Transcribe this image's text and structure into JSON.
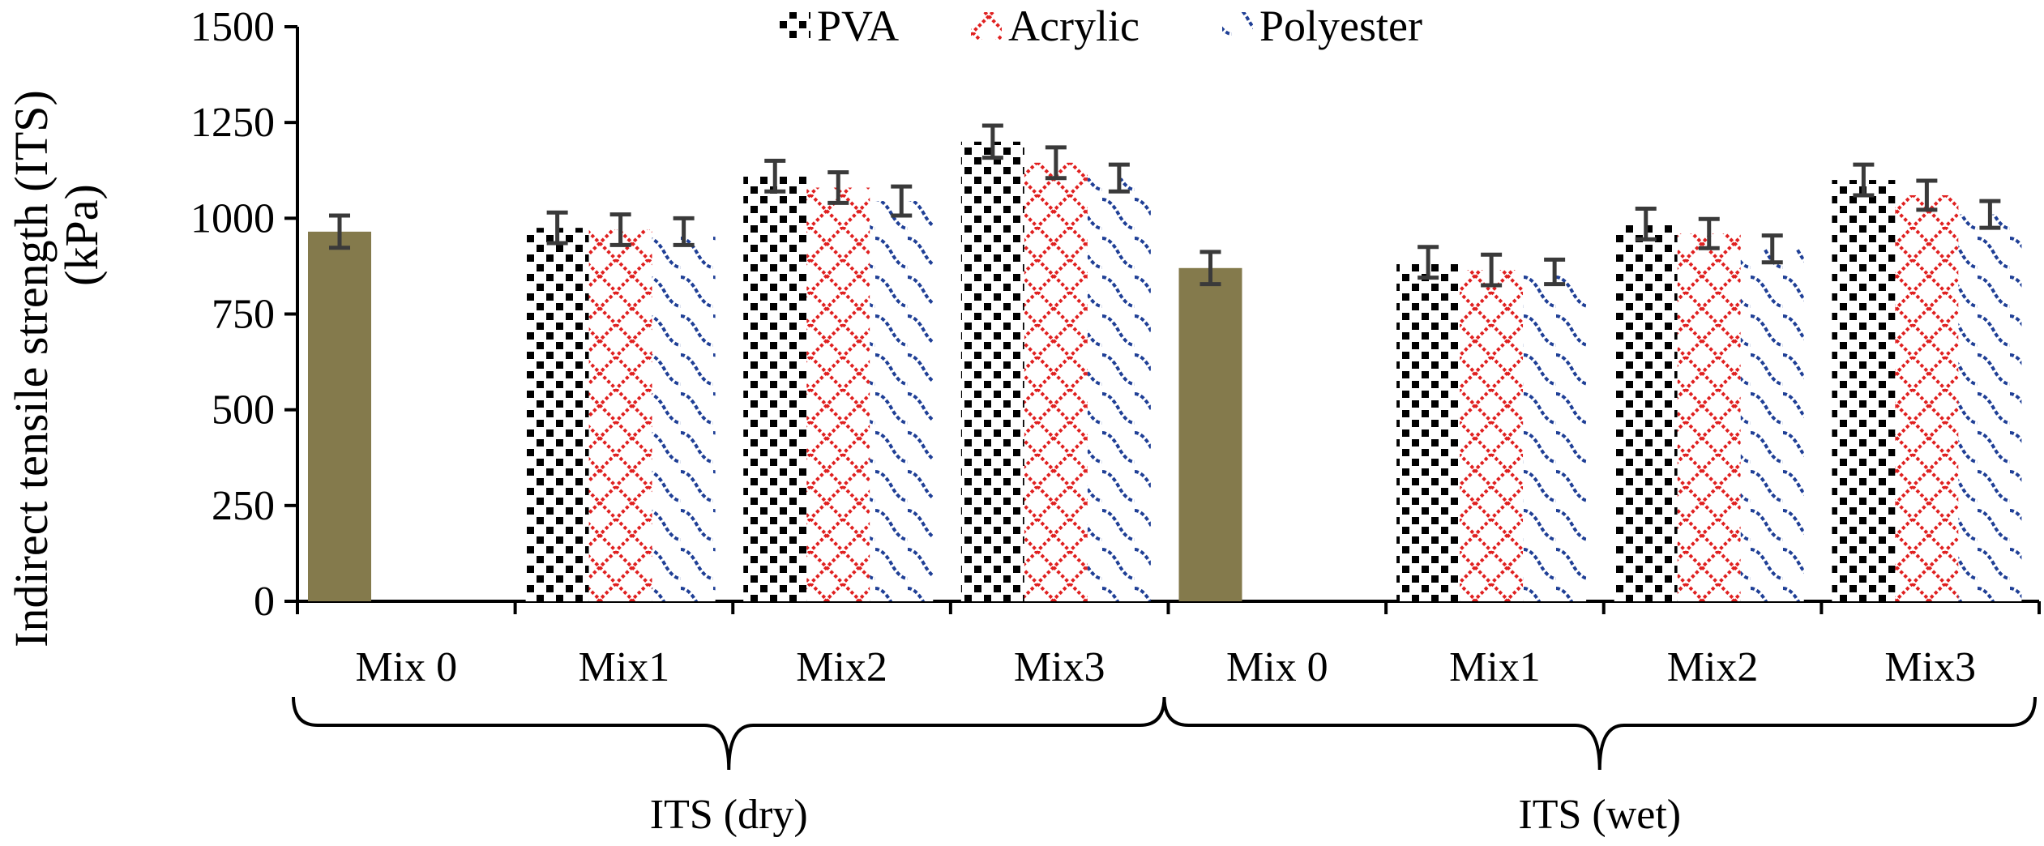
{
  "chart_data": {
    "type": "bar",
    "ylabel_line1": "Indirect tensile strength (ITS)",
    "ylabel_line2": "(kPa)",
    "ylim": [
      0,
      1500
    ],
    "yticks": [
      "0",
      "250",
      "500",
      "750",
      "1000",
      "1250",
      "1500"
    ],
    "ytick_values": [
      0,
      250,
      500,
      750,
      1000,
      1250,
      1500
    ],
    "categories": [
      "Mix 0",
      "Mix1",
      "Mix2",
      "Mix3",
      "Mix 0",
      "Mix1",
      "Mix2",
      "Mix3"
    ],
    "groups": [
      {
        "label": "ITS (dry)",
        "categories": [
          0,
          1,
          2,
          3
        ]
      },
      {
        "label": "ITS (wet)",
        "categories": [
          4,
          5,
          6,
          7
        ]
      }
    ],
    "legend": [
      "PVA",
      "Acrylic",
      "Polyester"
    ],
    "control": {
      "name": "Mix 0",
      "color": "#847a4c",
      "values": [
        965,
        null,
        null,
        null,
        870,
        null,
        null,
        null
      ],
      "errors": [
        42,
        null,
        null,
        null,
        42,
        null,
        null,
        null
      ]
    },
    "series": [
      {
        "name": "PVA",
        "color": "#000000",
        "values": [
          null,
          975,
          1110,
          1200,
          null,
          885,
          985,
          1100
        ],
        "errors": [
          null,
          40,
          40,
          42,
          null,
          40,
          40,
          40
        ]
      },
      {
        "name": "Acrylic",
        "color": "#e02020",
        "values": [
          null,
          970,
          1080,
          1145,
          null,
          865,
          960,
          1060
        ],
        "errors": [
          null,
          40,
          40,
          40,
          null,
          40,
          38,
          38
        ]
      },
      {
        "name": "Polyester",
        "color": "#1f3f96",
        "values": [
          null,
          965,
          1045,
          1105,
          null,
          860,
          920,
          1010
        ],
        "errors": [
          null,
          35,
          38,
          35,
          null,
          32,
          35,
          35
        ]
      }
    ],
    "error_bar_color": "#3a3a3a",
    "legend_position": "top-center",
    "grid": false
  }
}
